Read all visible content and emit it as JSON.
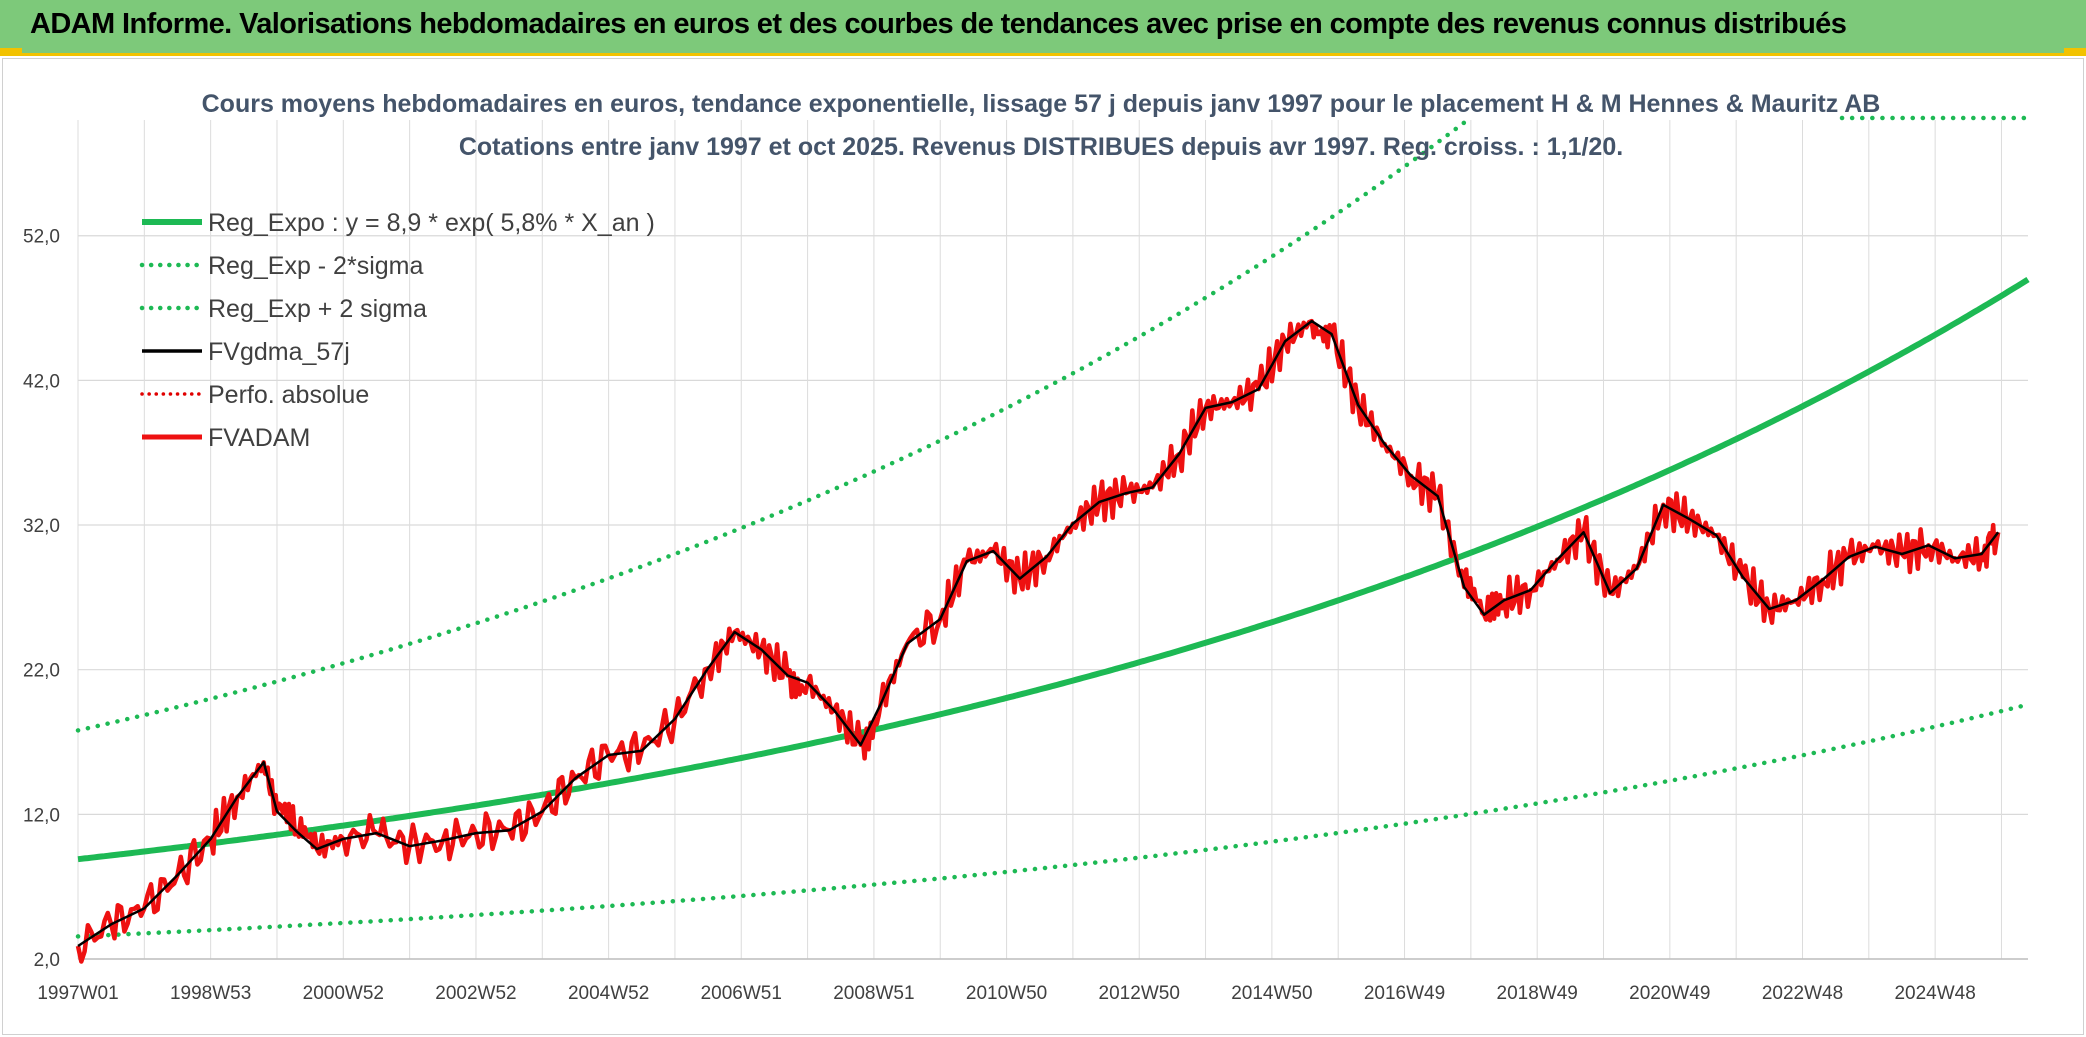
{
  "header": {
    "title": "ADAM Informe. Valorisations hebdomadaires en euros et des courbes de tendances avec prise en compte des revenus connus distribués"
  },
  "chart_data": {
    "type": "line",
    "subtitle_line1": "Cours moyens hebdomadaires en euros, tendance exponentielle, lissage 57 j depuis janv 1997 pour le placement H & M Hennes & Mauritz AB",
    "subtitle_line2": "Cotations entre janv 1997 et oct 2025. Revenus DISTRIBUES depuis avr 1997. Reg. croiss. : 1,1/20.",
    "ylim": [
      2,
      60
    ],
    "xlim": [
      1997.0,
      2026.4
    ],
    "grid": true,
    "legend_position": "top-left",
    "y_tick_labels": [
      "2,0",
      "12,0",
      "22,0",
      "32,0",
      "42,0",
      "52,0"
    ],
    "y_tick_values": [
      2,
      12,
      22,
      32,
      42,
      52
    ],
    "x_tick_labels": [
      "1997W01",
      "1998W53",
      "2000W52",
      "2002W52",
      "2004W52",
      "2006W51",
      "2008W51",
      "2010W50",
      "2012W50",
      "2014W50",
      "2016W49",
      "2018W49",
      "2020W49",
      "2022W48",
      "2024W48"
    ],
    "x_tick_values": [
      1997.0,
      1999.0,
      2001.0,
      2003.0,
      2005.0,
      2007.0,
      2009.0,
      2011.0,
      2013.0,
      2015.0,
      2017.0,
      2019.0,
      2021.0,
      2023.0,
      2025.0
    ],
    "series": [
      {
        "name": "Reg_Expo : y = 8,9 * exp( 5,8% *  X_an )",
        "style": "solid-thick",
        "color": "#1db954"
      },
      {
        "name": "Reg_Exp - 2*sigma",
        "style": "dotted",
        "color": "#1db954"
      },
      {
        "name": "Reg_Exp + 2 sigma",
        "style": "dotted",
        "color": "#1db954"
      },
      {
        "name": "FVgdma_57j",
        "style": "solid-thin",
        "color": "#000000",
        "x": [
          1997.0,
          1997.5,
          1998.0,
          1998.5,
          1999.0,
          1999.4,
          1999.8,
          2000.0,
          2000.3,
          2000.6,
          2001.0,
          2001.5,
          2002.0,
          2002.5,
          2003.0,
          2003.5,
          2004.0,
          2004.5,
          2005.0,
          2005.5,
          2006.0,
          2006.5,
          2006.9,
          2007.3,
          2007.7,
          2008.0,
          2008.4,
          2008.8,
          2009.1,
          2009.5,
          2010.0,
          2010.4,
          2010.8,
          2011.2,
          2011.6,
          2012.0,
          2012.4,
          2012.8,
          2013.2,
          2013.6,
          2014.0,
          2014.4,
          2014.8,
          2015.2,
          2015.6,
          2015.9,
          2016.3,
          2016.7,
          2017.1,
          2017.5,
          2017.9,
          2018.2,
          2018.5,
          2018.9,
          2019.3,
          2019.7,
          2020.1,
          2020.5,
          2020.9,
          2021.3,
          2021.7,
          2022.1,
          2022.5,
          2022.9,
          2023.3,
          2023.7,
          2024.1,
          2024.5,
          2024.9,
          2025.3,
          2025.7,
          2025.95
        ],
        "values": [
          2.9,
          4.4,
          5.5,
          7.8,
          10.3,
          13.2,
          15.6,
          12.2,
          10.8,
          9.6,
          10.3,
          10.7,
          9.8,
          10.2,
          10.7,
          10.9,
          12.2,
          14.5,
          16.1,
          16.4,
          18.6,
          22.1,
          24.6,
          23.4,
          21.6,
          21.1,
          19.2,
          16.8,
          19.6,
          23.8,
          25.5,
          29.5,
          30.2,
          28.3,
          29.8,
          32.1,
          33.6,
          34.2,
          34.6,
          36.9,
          40.1,
          40.5,
          41.4,
          44.7,
          46.1,
          45.2,
          40.3,
          37.6,
          35.4,
          34.0,
          27.7,
          25.8,
          26.8,
          27.5,
          29.6,
          31.5,
          27.3,
          29.0,
          33.4,
          32.4,
          31.3,
          28.4,
          26.2,
          26.8,
          28.2,
          29.8,
          30.5,
          30.0,
          30.6,
          29.7,
          30.0,
          31.5
        ]
      },
      {
        "name": "Perfo. absolue",
        "style": "dotted",
        "color": "#e00000"
      },
      {
        "name": "FVADAM",
        "style": "solid-thick",
        "color": "#ee1111",
        "x": [
          1997.0,
          1997.5,
          1998.0,
          1998.5,
          1999.0,
          1999.4,
          1999.8,
          2000.0,
          2000.3,
          2000.6,
          2001.0,
          2001.5,
          2002.0,
          2002.5,
          2003.0,
          2003.5,
          2004.0,
          2004.5,
          2005.0,
          2005.5,
          2006.0,
          2006.5,
          2006.9,
          2007.3,
          2007.7,
          2008.0,
          2008.4,
          2008.8,
          2009.1,
          2009.5,
          2010.0,
          2010.4,
          2010.8,
          2011.2,
          2011.6,
          2012.0,
          2012.4,
          2012.8,
          2013.2,
          2013.6,
          2014.0,
          2014.4,
          2014.8,
          2015.2,
          2015.6,
          2015.9,
          2016.3,
          2016.7,
          2017.1,
          2017.5,
          2017.9,
          2018.2,
          2018.5,
          2018.9,
          2019.3,
          2019.7,
          2020.1,
          2020.5,
          2020.9,
          2021.3,
          2021.7,
          2022.1,
          2022.5,
          2022.9,
          2023.3,
          2023.7,
          2024.1,
          2024.5,
          2024.9,
          2025.3,
          2025.7,
          2025.95
        ],
        "values": [
          2.9,
          4.4,
          5.5,
          7.8,
          10.3,
          13.2,
          15.6,
          12.2,
          10.8,
          9.6,
          10.3,
          10.7,
          9.8,
          10.2,
          10.7,
          10.9,
          12.2,
          14.5,
          16.1,
          16.4,
          18.6,
          22.1,
          24.6,
          23.4,
          21.6,
          21.1,
          19.2,
          16.8,
          19.6,
          23.8,
          25.5,
          29.5,
          30.2,
          28.3,
          29.8,
          32.1,
          33.6,
          34.2,
          34.6,
          36.9,
          40.1,
          40.5,
          41.4,
          44.7,
          46.1,
          45.2,
          40.3,
          37.6,
          35.4,
          34.0,
          27.7,
          25.8,
          26.8,
          27.5,
          29.6,
          31.5,
          27.3,
          29.0,
          33.4,
          32.4,
          31.3,
          28.4,
          26.2,
          26.8,
          28.2,
          29.8,
          30.5,
          30.0,
          30.6,
          29.7,
          30.0,
          31.5
        ]
      }
    ]
  }
}
